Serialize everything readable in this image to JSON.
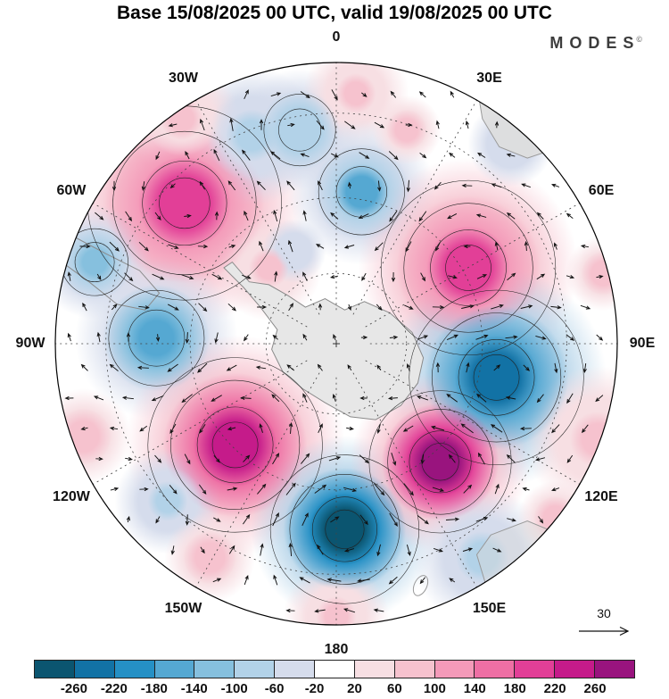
{
  "header": {
    "logo": "MODES",
    "logo_mark": "©"
  },
  "chart_data": {
    "type": "heatmap",
    "projection": "south-polar-stereographic",
    "title": "Base 15/08/2025 00 UTC, valid 19/08/2025 00 UTC",
    "longitude_labels": [
      "0",
      "30E",
      "60E",
      "90E",
      "120E",
      "150E",
      "180",
      "150W",
      "120W",
      "90W",
      "60W",
      "30W"
    ],
    "vector_scale_label": "30",
    "land_color": "#e7e7e7",
    "colorbar": {
      "tick_labels": [
        "-260",
        "-220",
        "-180",
        "-140",
        "-100",
        "-60",
        "-20",
        "20",
        "60",
        "100",
        "140",
        "180",
        "220",
        "260"
      ],
      "levels": [
        -260,
        -220,
        -180,
        -140,
        -100,
        -60,
        -20,
        20,
        60,
        100,
        140,
        180,
        220,
        260
      ],
      "colors": [
        "#0b5570",
        "#1272a5",
        "#2590c5",
        "#55a8d2",
        "#86c0de",
        "#b2d2e8",
        "#d5dcec",
        "#ffffff",
        "#f7dfe3",
        "#f6c2ce",
        "#f49ab9",
        "#ee6fa4",
        "#e23f97",
        "#c51b8a",
        "#99147e"
      ]
    },
    "anomaly_centers": [
      {
        "x": -0.54,
        "y": -0.5,
        "r": 0.3,
        "value": 200
      },
      {
        "x": -0.3,
        "y": -0.74,
        "r": 0.17,
        "value": -90
      },
      {
        "x": -0.13,
        "y": -0.76,
        "r": 0.15,
        "value": -100
      },
      {
        "x": 0.07,
        "y": -0.89,
        "r": 0.13,
        "value": 80
      },
      {
        "x": 0.09,
        "y": -0.54,
        "r": 0.18,
        "value": -150
      },
      {
        "x": 0.47,
        "y": -0.27,
        "r": 0.27,
        "value": 210
      },
      {
        "x": 0.62,
        "y": -0.71,
        "r": 0.16,
        "value": -40
      },
      {
        "x": -0.86,
        "y": -0.29,
        "r": 0.14,
        "value": -110
      },
      {
        "x": -0.64,
        "y": -0.02,
        "r": 0.2,
        "value": -180
      },
      {
        "x": 0.57,
        "y": 0.12,
        "r": 0.27,
        "value": -230
      },
      {
        "x": -0.36,
        "y": 0.36,
        "r": 0.27,
        "value": 235
      },
      {
        "x": 0.03,
        "y": 0.66,
        "r": 0.23,
        "value": -280
      },
      {
        "x": 0.37,
        "y": 0.42,
        "r": 0.22,
        "value": 280
      },
      {
        "x": 0.52,
        "y": 0.76,
        "r": 0.17,
        "value": -80
      },
      {
        "x": 0.93,
        "y": 0.34,
        "r": 0.18,
        "value": 80
      },
      {
        "x": -0.9,
        "y": 0.33,
        "r": 0.18,
        "value": 60
      },
      {
        "x": -0.45,
        "y": 0.76,
        "r": 0.17,
        "value": 60
      },
      {
        "x": 0.0,
        "y": 0.97,
        "r": 0.13,
        "value": 70
      },
      {
        "x": -0.24,
        "y": -0.27,
        "r": 0.13,
        "value": 90
      },
      {
        "x": 0.25,
        "y": -0.76,
        "r": 0.13,
        "value": 60
      },
      {
        "x": -0.15,
        "y": -0.33,
        "r": 0.12,
        "value": -60
      },
      {
        "x": 0.78,
        "y": 0.62,
        "r": 0.14,
        "value": 60
      },
      {
        "x": -0.6,
        "y": 0.56,
        "r": 0.13,
        "value": -70
      },
      {
        "x": -0.55,
        "y": -0.8,
        "r": 0.14,
        "value": 70
      },
      {
        "x": 0.95,
        "y": -0.25,
        "r": 0.14,
        "value": 60
      }
    ]
  }
}
